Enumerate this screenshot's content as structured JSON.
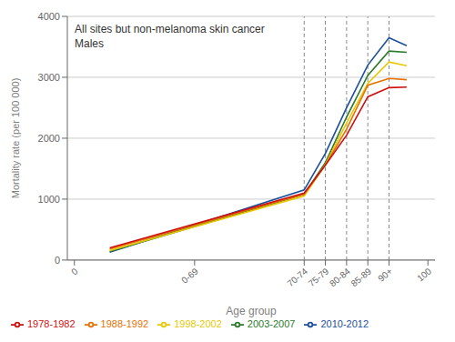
{
  "chart_data": {
    "type": "line",
    "title": "All sites but non-melanoma skin cancer",
    "subtitle": "Males",
    "x_label": "Age group",
    "y_label": "Mortality rate (per 100 000)",
    "x": [
      10,
      65,
      71,
      77,
      83,
      89,
      94
    ],
    "series": [
      {
        "name": "2010-2012",
        "color": "#1a4f9c",
        "values": [
          130,
          1150,
          1750,
          2500,
          3200,
          3650,
          3520
        ]
      },
      {
        "name": "2003-2007",
        "color": "#2a7a2a",
        "values": [
          140,
          1080,
          1600,
          2350,
          3030,
          3430,
          3410
        ]
      },
      {
        "name": "1998-2002",
        "color": "#e8c800",
        "values": [
          155,
          1050,
          1570,
          2250,
          2900,
          3250,
          3190
        ]
      },
      {
        "name": "1988-1992",
        "color": "#e87000",
        "values": [
          180,
          1080,
          1560,
          2150,
          2870,
          2980,
          2960
        ]
      },
      {
        "name": "1978-1982",
        "color": "#cc1010",
        "values": [
          200,
          1100,
          1560,
          2050,
          2680,
          2830,
          2840
        ]
      }
    ],
    "xlim": [
      -2,
      102
    ],
    "xticks": [
      0,
      {
        "value": 34,
        "label": "0-69"
      },
      {
        "value": 65,
        "label": "70-74"
      },
      {
        "value": 71,
        "label": "75-79"
      },
      {
        "value": 77,
        "label": "80-84"
      },
      {
        "value": 83,
        "label": "85-89"
      },
      {
        "value": 89,
        "label": "90+"
      },
      100
    ],
    "ylim": [
      0,
      4000
    ],
    "yticks": [
      0,
      1000,
      2000,
      3000,
      4000
    ],
    "vlines": [
      65,
      71,
      77,
      83,
      89
    ],
    "grid": true,
    "legend": "lower left"
  }
}
